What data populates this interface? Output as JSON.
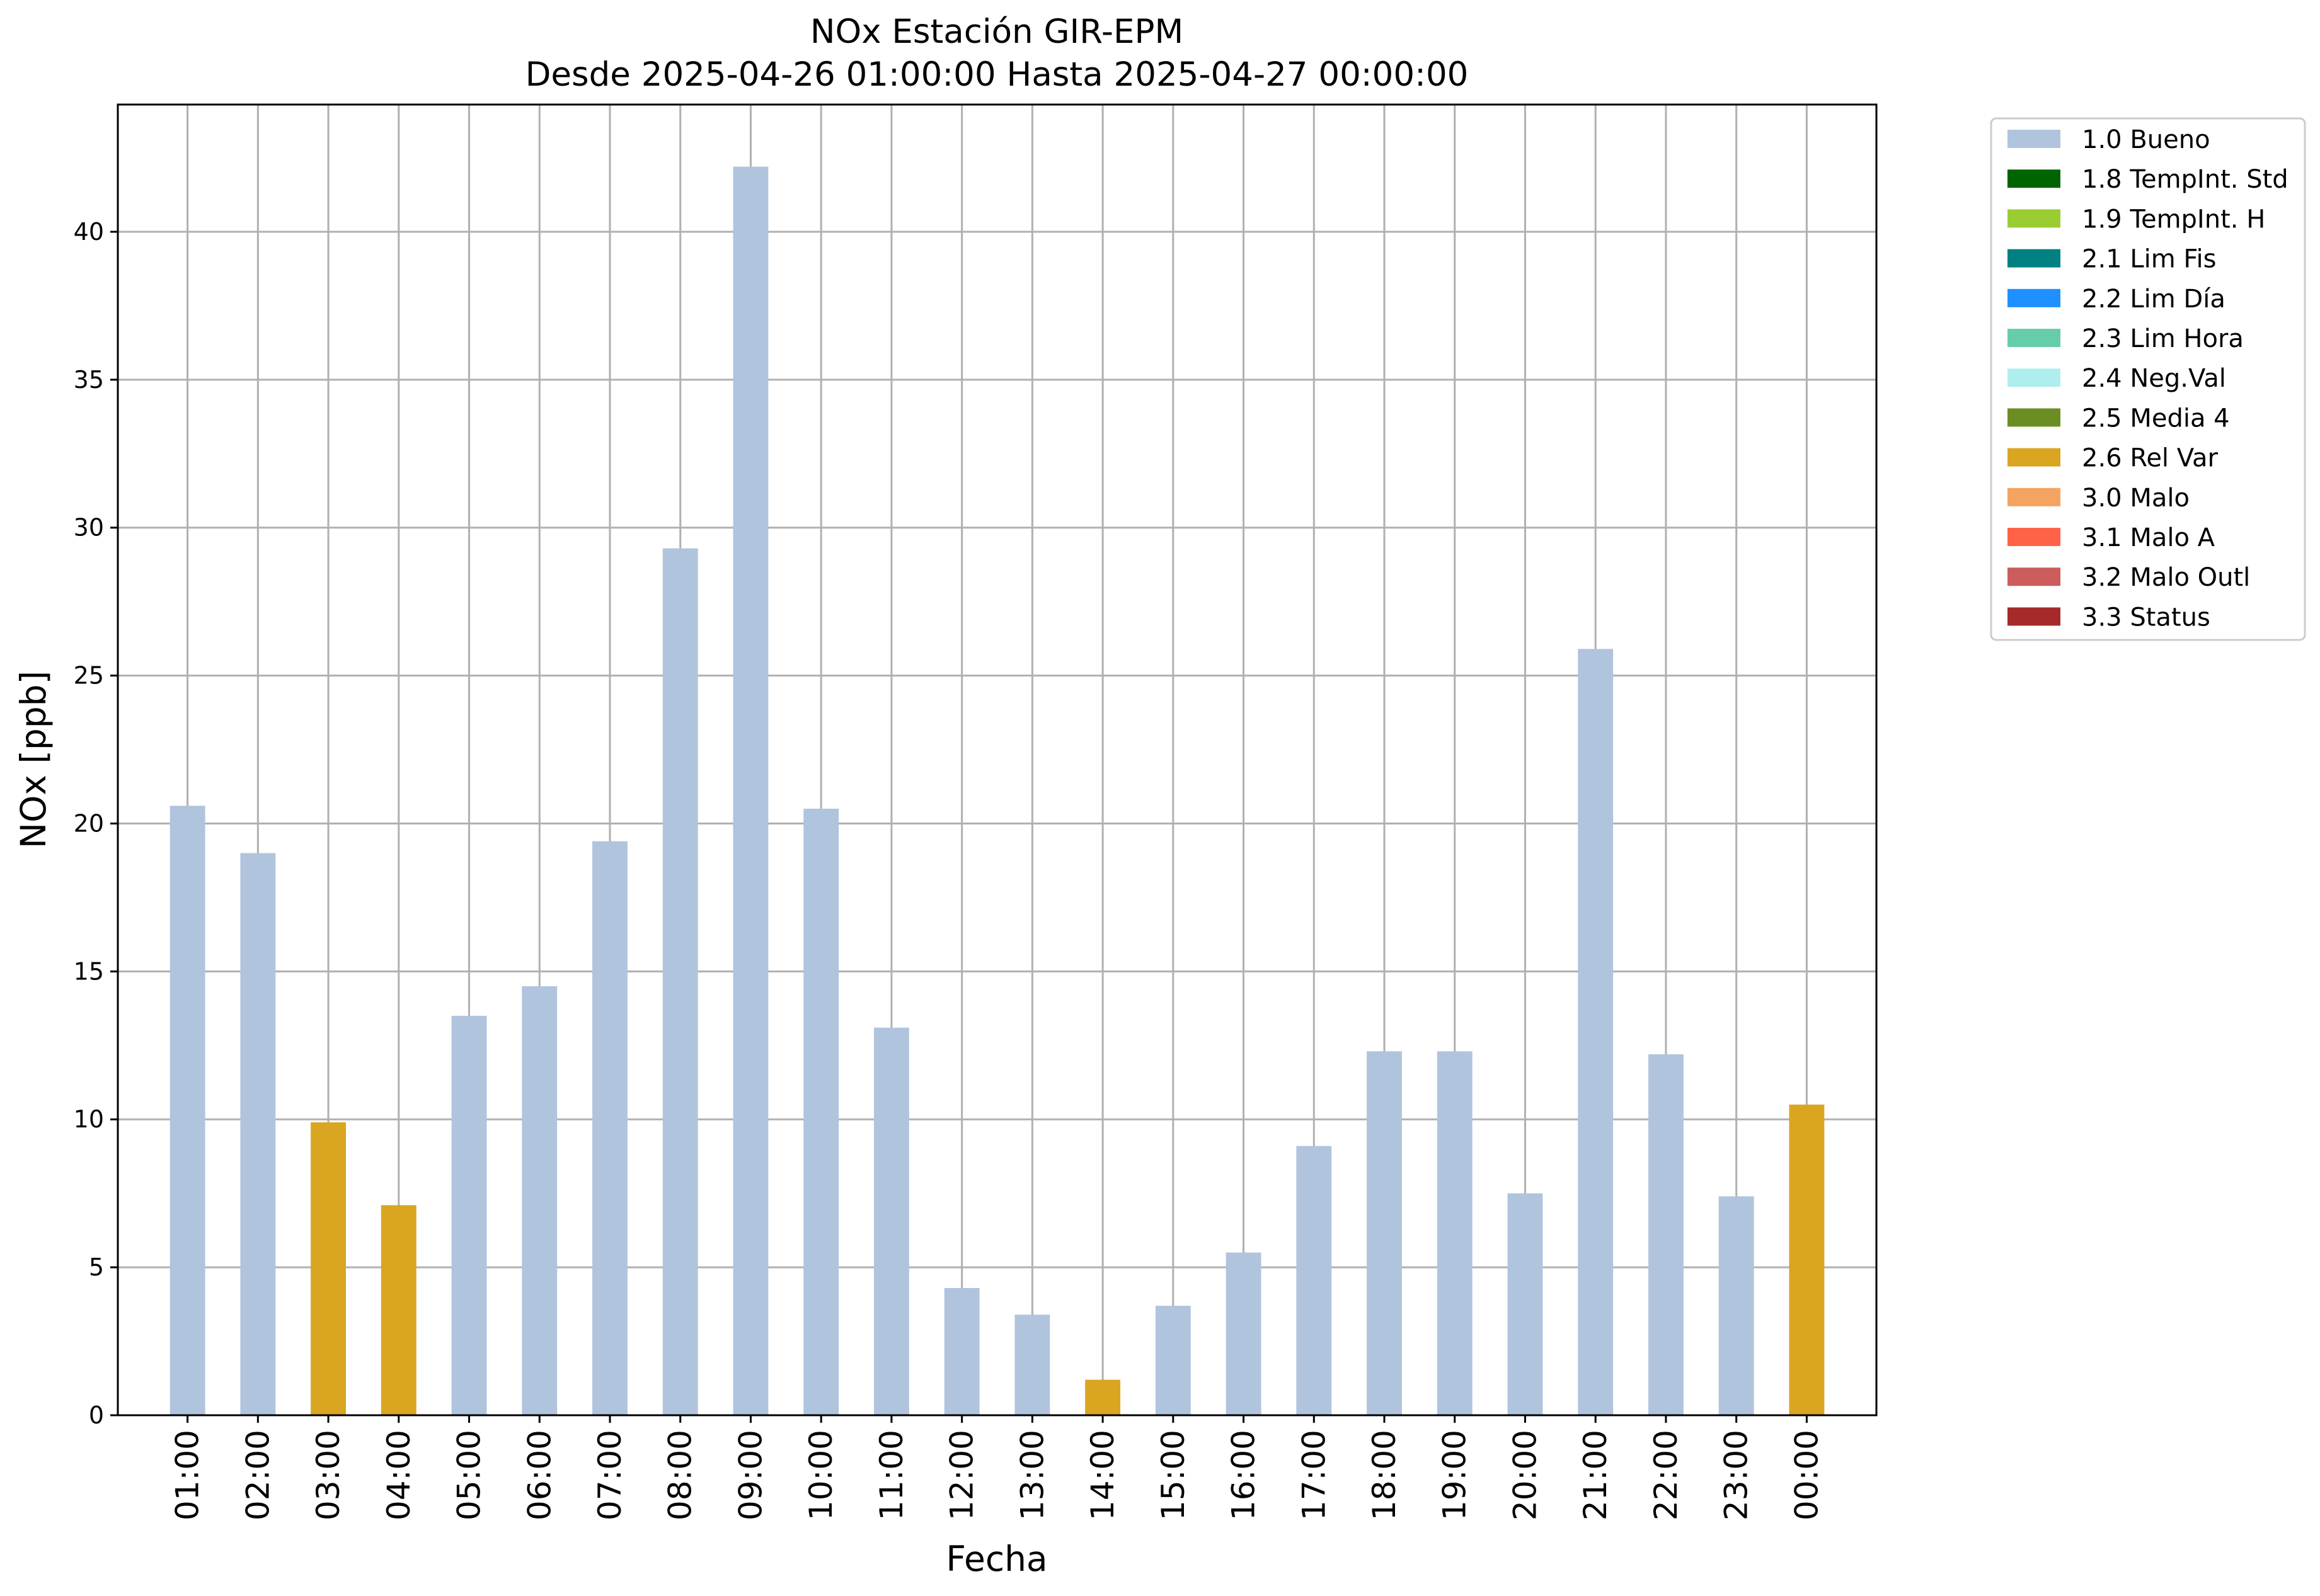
{
  "chart_data": {
    "type": "bar",
    "title_line1": "NOx Estación GIR-EPM",
    "title_line2": "Desde 2025-04-26 01:00:00 Hasta 2025-04-27 00:00:00",
    "xlabel": "Fecha",
    "ylabel": "NOx [ppb]",
    "ylim": [
      0,
      44.3
    ],
    "yticks": [
      0,
      5,
      10,
      15,
      20,
      25,
      30,
      35,
      40
    ],
    "grid": true,
    "legend_position": "outside-right",
    "categories": [
      "01:00",
      "02:00",
      "03:00",
      "04:00",
      "05:00",
      "06:00",
      "07:00",
      "08:00",
      "09:00",
      "10:00",
      "11:00",
      "12:00",
      "13:00",
      "14:00",
      "15:00",
      "16:00",
      "17:00",
      "18:00",
      "19:00",
      "20:00",
      "21:00",
      "22:00",
      "23:00",
      "00:00"
    ],
    "values": [
      20.6,
      19.0,
      9.9,
      7.1,
      13.5,
      14.5,
      19.4,
      29.3,
      42.2,
      20.5,
      13.1,
      4.3,
      3.4,
      1.2,
      3.7,
      5.5,
      9.1,
      12.3,
      12.3,
      7.5,
      25.9,
      12.2,
      7.4,
      10.5
    ],
    "flags": [
      "1.0 Bueno",
      "1.0 Bueno",
      "2.6 Rel Var",
      "2.6 Rel Var",
      "1.0 Bueno",
      "1.0 Bueno",
      "1.0 Bueno",
      "1.0 Bueno",
      "1.0 Bueno",
      "1.0 Bueno",
      "1.0 Bueno",
      "1.0 Bueno",
      "1.0 Bueno",
      "2.6 Rel Var",
      "1.0 Bueno",
      "1.0 Bueno",
      "1.0 Bueno",
      "1.0 Bueno",
      "1.0 Bueno",
      "1.0 Bueno",
      "1.0 Bueno",
      "1.0 Bueno",
      "1.0 Bueno",
      "2.6 Rel Var"
    ],
    "legend": [
      {
        "label": "1.0 Bueno",
        "color": "#b0c4de"
      },
      {
        "label": "1.8 TempInt. Std",
        "color": "#006400"
      },
      {
        "label": "1.9 TempInt. H",
        "color": "#9acd32"
      },
      {
        "label": "2.1 Lim Fis",
        "color": "#008080"
      },
      {
        "label": "2.2 Lim Día",
        "color": "#1e90ff"
      },
      {
        "label": "2.3 Lim Hora",
        "color": "#66cdaa"
      },
      {
        "label": "2.4 Neg.Val",
        "color": "#afeeee"
      },
      {
        "label": "2.5 Media 4",
        "color": "#6b8e23"
      },
      {
        "label": "2.6 Rel Var",
        "color": "#daa520"
      },
      {
        "label": "3.0 Malo",
        "color": "#f4a460"
      },
      {
        "label": "3.1 Malo A",
        "color": "#ff6347"
      },
      {
        "label": "3.2 Malo Outl",
        "color": "#cd5c5c"
      },
      {
        "label": "3.3 Status",
        "color": "#a52a2a"
      }
    ]
  }
}
